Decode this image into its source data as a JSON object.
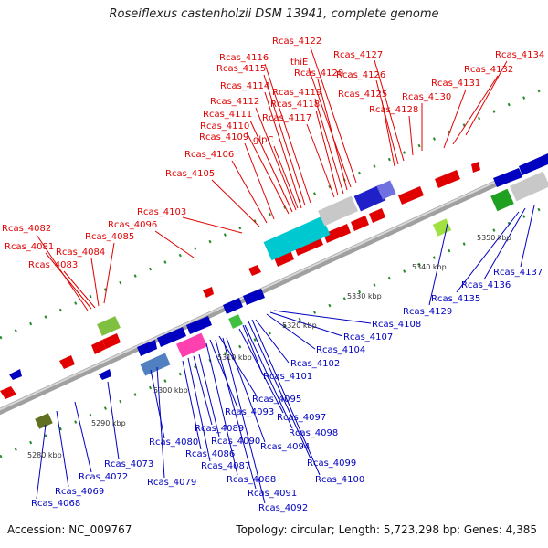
{
  "title": "Roseiflexus castenholzii DSM 13941, complete genome",
  "accession_label": "Accession: NC_009767",
  "topology_label": "Topology: circular; Length: 5,723,298 bp; Genes: 4,385",
  "colors": {
    "forward_label": "#e00000",
    "reverse_label": "#0000c0",
    "backbone": "#909090"
  },
  "ticks": [
    "5280 kbp",
    "5290 kbp",
    "5300 kbp",
    "5310 kbp",
    "5320 kbp",
    "5330 kbp",
    "5340 kbp",
    "5350 kbp"
  ],
  "forward_genes": [
    "Rcas_4122",
    "thiE",
    "Rcas_4127",
    "Rcas_4134",
    "Rcas_4116",
    "Rcas_4115",
    "Rcas_4120",
    "Rcas_4126",
    "Rcas_4132",
    "Rcas_4114",
    "Rcas_4131",
    "Rcas_4119",
    "Rcas_4125",
    "Rcas_4112",
    "Rcas_4118",
    "Rcas_4130",
    "Rcas_4111",
    "Rcas_4128",
    "Rcas_4110",
    "Rcas_4117",
    "Rcas_4109",
    "glpC",
    "Rcas_4106",
    "Rcas_4105",
    "Rcas_4103",
    "Rcas_4082",
    "Rcas_4096",
    "Rcas_4085",
    "Rcas_4081",
    "Rcas_4084",
    "Rcas_4083"
  ],
  "reverse_genes": [
    "Rcas_4137",
    "Rcas_4136",
    "Rcas_4135",
    "Rcas_4129",
    "Rcas_4108",
    "Rcas_4107",
    "Rcas_4104",
    "Rcas_4102",
    "Rcas_4101",
    "Rcas_4095",
    "Rcas_4093",
    "Rcas_4097",
    "Rcas_4098",
    "Rcas_4089",
    "Rcas_4090",
    "Rcas_4094",
    "Rcas_4080",
    "Rcas_4086",
    "Rcas_4099",
    "Rcas_4087",
    "Rcas_4073",
    "Rcas_4100",
    "Rcas_4072",
    "Rcas_4079",
    "Rcas_4088",
    "Rcas_4069",
    "Rcas_4091",
    "Rcas_4092",
    "Rcas_4068"
  ]
}
